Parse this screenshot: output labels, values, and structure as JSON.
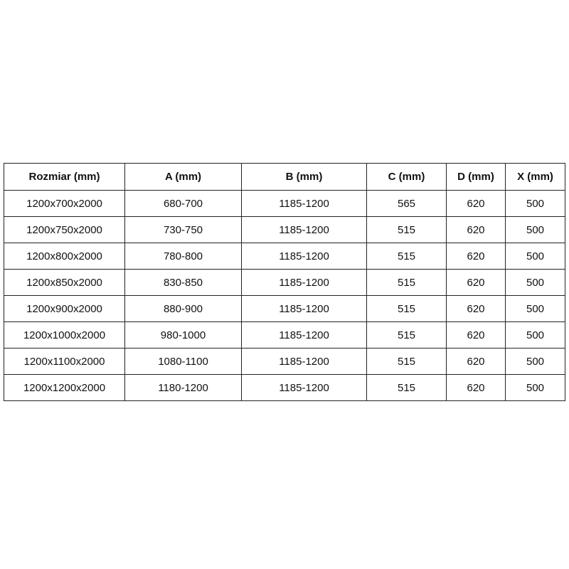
{
  "table": {
    "header": [
      "Rozmiar (mm)",
      "A (mm)",
      "B (mm)",
      "C (mm)",
      "D (mm)",
      "X (mm)"
    ],
    "rows": [
      [
        "1200x700x2000",
        "680-700",
        "1185-1200",
        "565",
        "620",
        "500"
      ],
      [
        "1200x750x2000",
        "730-750",
        "1185-1200",
        "515",
        "620",
        "500"
      ],
      [
        "1200x800x2000",
        "780-800",
        "1185-1200",
        "515",
        "620",
        "500"
      ],
      [
        "1200x850x2000",
        "830-850",
        "1185-1200",
        "515",
        "620",
        "500"
      ],
      [
        "1200x900x2000",
        "880-900",
        "1185-1200",
        "515",
        "620",
        "500"
      ],
      [
        "1200x1000x2000",
        "980-1000",
        "1185-1200",
        "515",
        "620",
        "500"
      ],
      [
        "1200x1100x2000",
        "1080-1100",
        "1185-1200",
        "515",
        "620",
        "500"
      ],
      [
        "1200x1200x2000",
        "1180-1200",
        "1185-1200",
        "515",
        "620",
        "500"
      ]
    ]
  }
}
